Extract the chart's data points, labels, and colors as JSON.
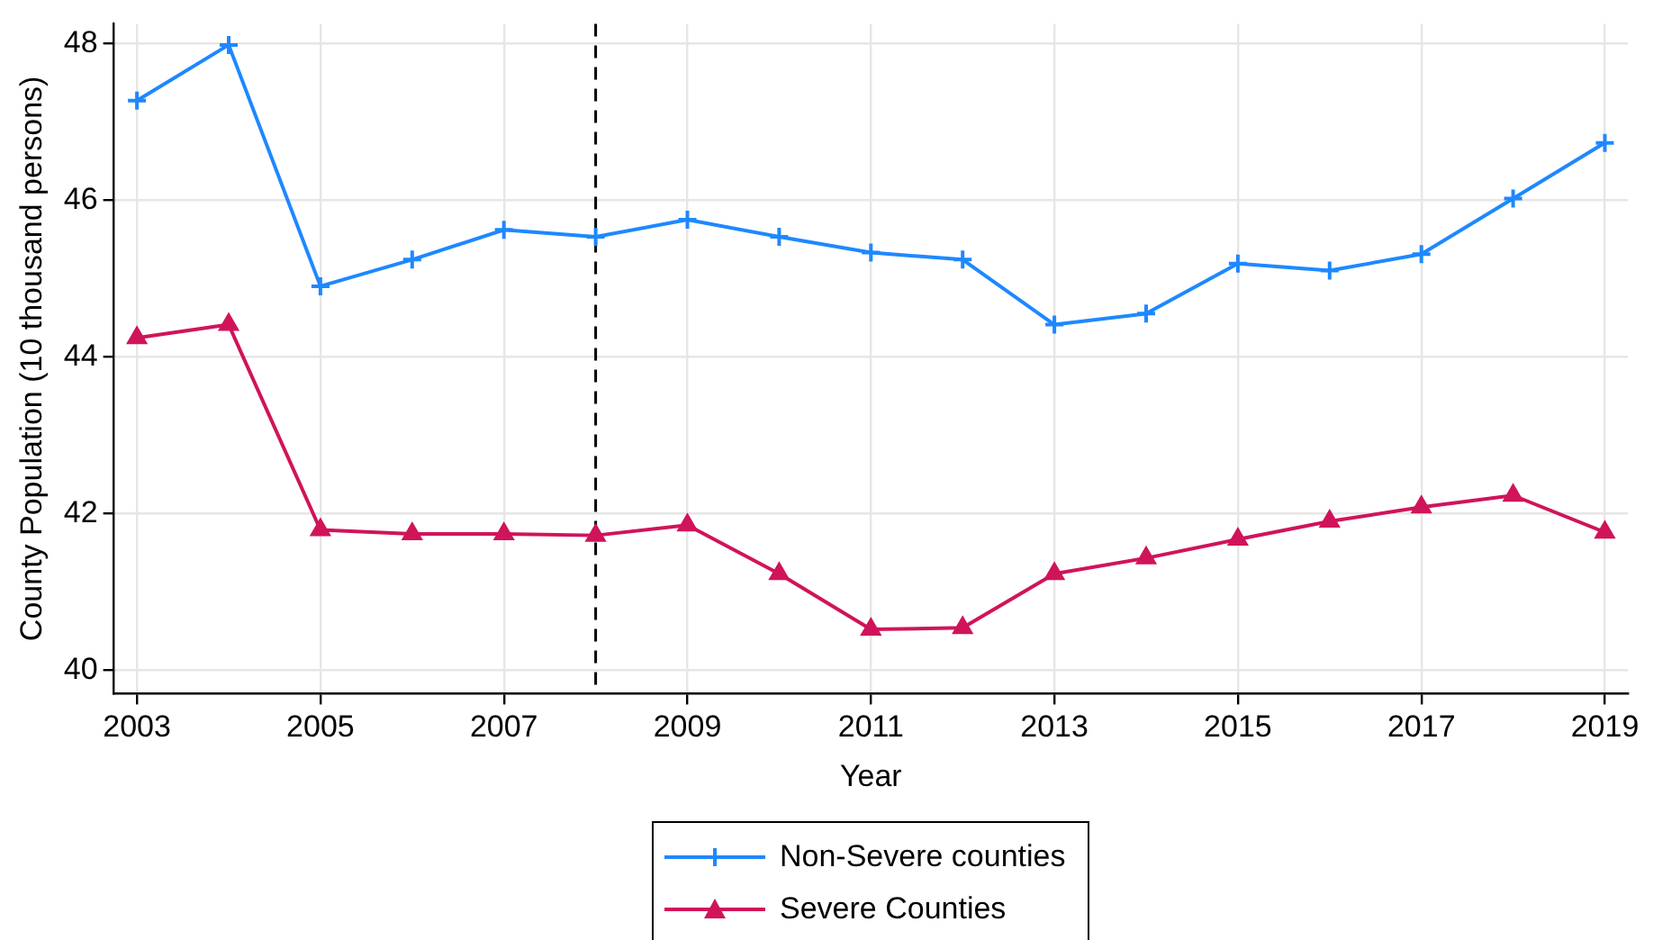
{
  "chart_data": {
    "type": "line",
    "xlabel": "Year",
    "ylabel": "County Population (10 thousand persons)",
    "x": [
      2003,
      2004,
      2005,
      2006,
      2007,
      2008,
      2009,
      2010,
      2011,
      2012,
      2013,
      2014,
      2015,
      2016,
      2017,
      2018,
      2019
    ],
    "series": [
      {
        "name": "Non-Severe counties",
        "color": "#1e88ff",
        "marker": "cross",
        "values": [
          47.27,
          47.98,
          44.9,
          45.24,
          45.62,
          45.53,
          45.75,
          45.53,
          45.33,
          45.24,
          44.41,
          44.55,
          45.19,
          45.1,
          45.31,
          46.02,
          46.73
        ]
      },
      {
        "name": "Severe Counties",
        "color": "#d0145a",
        "marker": "triangle",
        "values": [
          44.24,
          44.41,
          41.79,
          41.74,
          41.74,
          41.72,
          41.85,
          41.23,
          40.52,
          40.54,
          41.23,
          41.43,
          41.67,
          41.9,
          42.08,
          42.23,
          41.76
        ]
      }
    ],
    "xlim": [
      2002.75,
      2019.25
    ],
    "xticks": [
      2003,
      2005,
      2007,
      2009,
      2011,
      2013,
      2015,
      2017,
      2019
    ],
    "ylim": [
      39.7,
      48.25
    ],
    "yticks": [
      40,
      42,
      44,
      46,
      48
    ],
    "ref_lines": [
      {
        "axis": "x",
        "value": 2008,
        "color": "#000000",
        "line_style": "dashed"
      }
    ],
    "grid": true,
    "legend": "bottom",
    "line_style": "solid"
  }
}
